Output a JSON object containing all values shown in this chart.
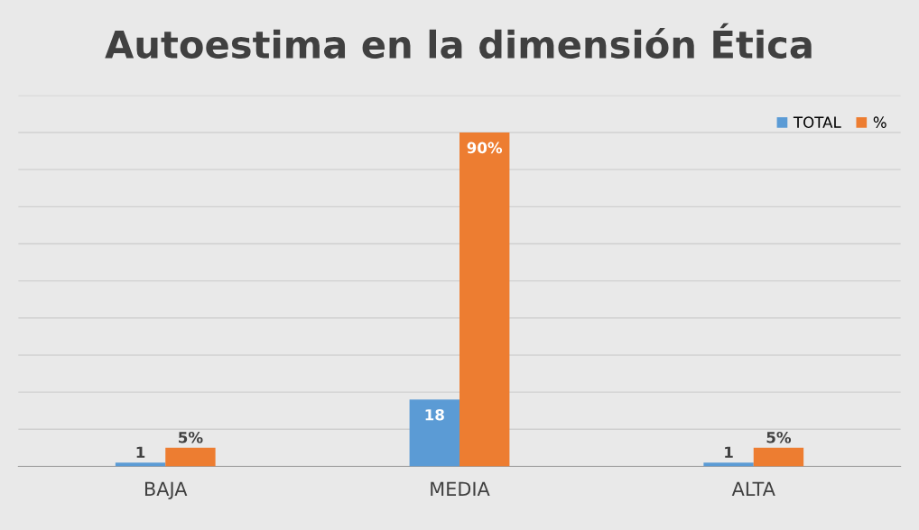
{
  "chart_data": {
    "type": "bar",
    "title": "Autoestima en la dimensión Ética",
    "categories": [
      "BAJA",
      "MEDIA",
      "ALTA"
    ],
    "series": [
      {
        "name": "TOTAL",
        "color": "#5b9bd5",
        "values": [
          1,
          18,
          1
        ],
        "value_labels": [
          "1",
          "18",
          "1"
        ]
      },
      {
        "name": "%",
        "color": "#ed7d31",
        "values": [
          5,
          90,
          5
        ],
        "value_labels": [
          "5%",
          "90%",
          "5%"
        ]
      }
    ],
    "ylim": [
      0,
      100
    ],
    "yticks": [
      {
        "value": 0,
        "label": null
      },
      {
        "value": 10,
        "label": null
      },
      {
        "value": 20,
        "label": null
      },
      {
        "value": 30,
        "label": null
      },
      {
        "value": 40,
        "label": null
      },
      {
        "value": 50,
        "label": null
      },
      {
        "value": 60,
        "label": null
      },
      {
        "value": 70,
        "label": null
      },
      {
        "value": 80,
        "label": null
      },
      {
        "value": 90,
        "label": null
      },
      {
        "value": 100,
        "label": null
      }
    ],
    "tick_labels": "x",
    "grid": "y",
    "legend": "top right"
  }
}
